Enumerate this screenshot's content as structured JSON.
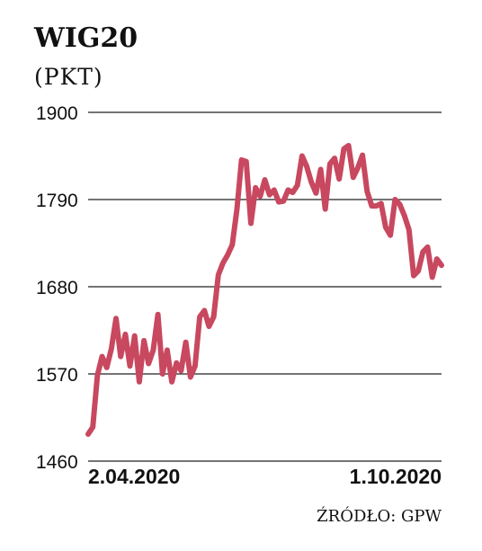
{
  "chart_data": {
    "type": "line",
    "title": "WIG20",
    "subtitle": "(PKT)",
    "xlabel": "",
    "ylabel": "",
    "ylim": [
      1460,
      1900
    ],
    "yticks": [
      1900,
      1790,
      1680,
      1570,
      1460
    ],
    "xtick_labels": [
      "2.04.2020",
      "1.10.2020"
    ],
    "grid": "horizontal",
    "legend": "none",
    "line_color": "#c84860",
    "source": "ŹRÓDŁO: GPW",
    "series": [
      {
        "values": [
          1494,
          1503,
          1568,
          1592,
          1578,
          1602,
          1640,
          1592,
          1620,
          1580,
          1618,
          1560,
          1612,
          1583,
          1600,
          1645,
          1570,
          1600,
          1560,
          1584,
          1574,
          1610,
          1566,
          1580,
          1642,
          1650,
          1630,
          1642,
          1695,
          1710,
          1720,
          1733,
          1778,
          1840,
          1838,
          1760,
          1805,
          1794,
          1815,
          1796,
          1802,
          1787,
          1788,
          1802,
          1799,
          1808,
          1845,
          1832,
          1812,
          1798,
          1828,
          1778,
          1835,
          1842,
          1816,
          1854,
          1858,
          1818,
          1830,
          1846,
          1800,
          1782,
          1782,
          1785,
          1755,
          1745,
          1790,
          1784,
          1770,
          1752,
          1694,
          1700,
          1724,
          1730,
          1692,
          1715,
          1707
        ]
      }
    ]
  }
}
